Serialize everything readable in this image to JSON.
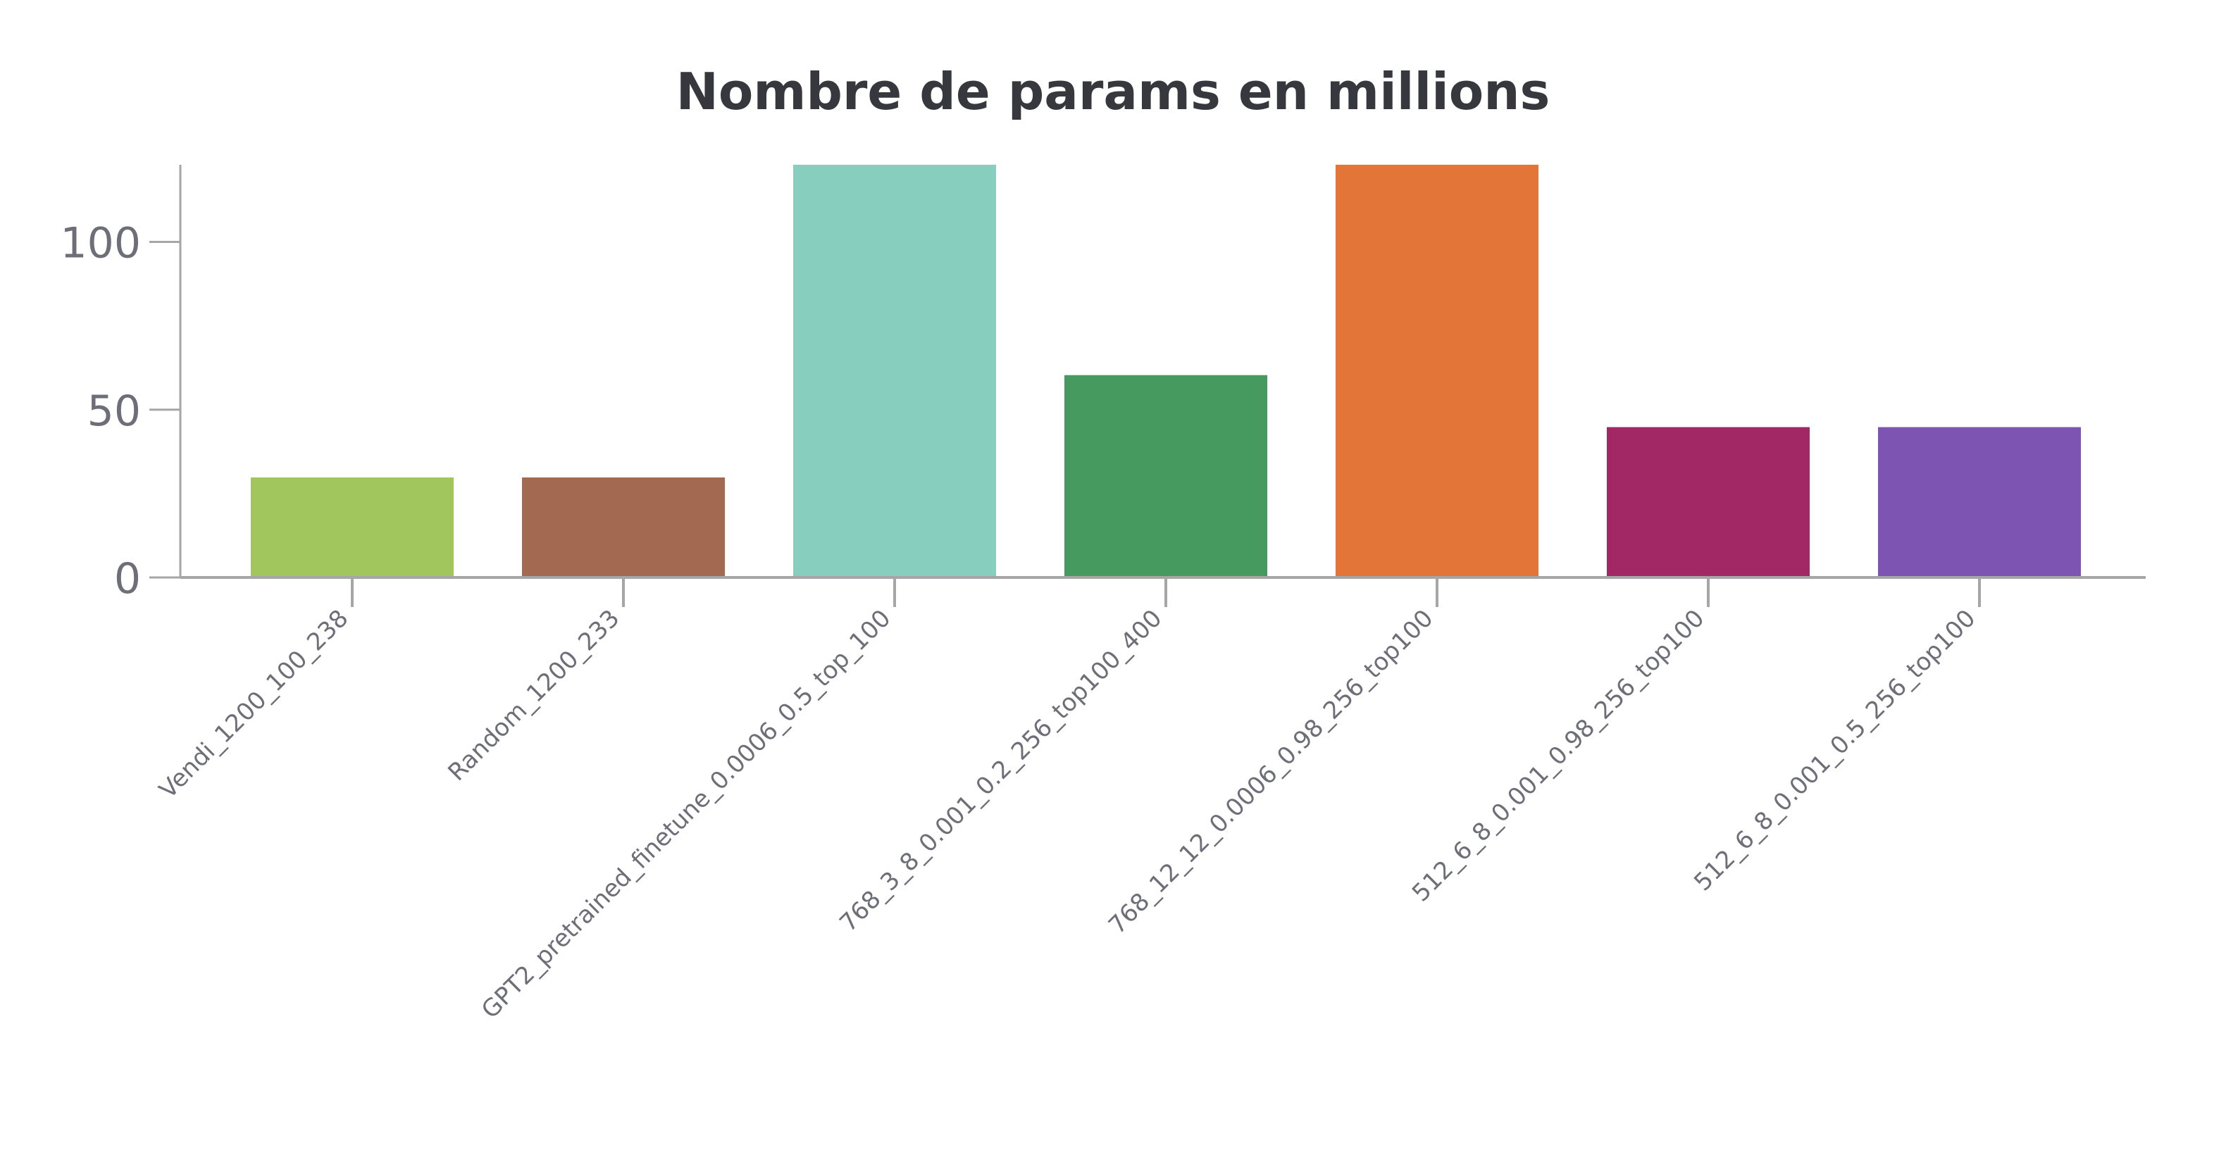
{
  "chart_data": {
    "type": "bar",
    "title": "Nombre de params en millions",
    "xlabel": "",
    "ylabel": "",
    "categories": [
      "Vendi_1200_100_238",
      "Random_1200_233",
      "GPT2_pretrained_finetune_0.0006_0.5_top_100",
      "768_3_8_0.001_0.2_256_top100_400",
      "768_12_12_0.0006_0.98_256_top100",
      "512_6_8_0.001_0.98_256_top100",
      "512_6_8_0.001_0.5_256_top100"
    ],
    "values": [
      29.8,
      29.8,
      124.4,
      60.3,
      124.4,
      44.8,
      44.8
    ],
    "colors": [
      "#a1c65d",
      "#a46a51",
      "#88cebe",
      "#479a5f",
      "#e37539",
      "#a12864",
      "#7d54b2"
    ],
    "ylim": [
      0,
      123
    ],
    "yticks": [
      0,
      50,
      100
    ],
    "grid": false,
    "legend": "none"
  }
}
